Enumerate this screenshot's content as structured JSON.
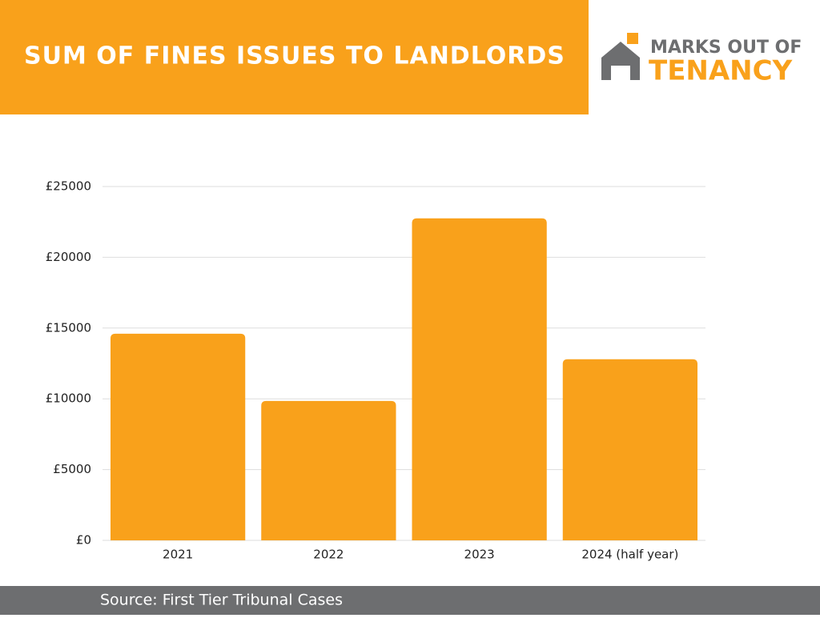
{
  "chart_data": {
    "type": "bar",
    "title": "SUM OF FINES ISSUES TO LANDLORDS",
    "categories": [
      "2021",
      "2022",
      "2023",
      "2024 (half year)"
    ],
    "values": [
      14600,
      9850,
      22750,
      12800
    ],
    "color": "#f9a11b",
    "ylim": [
      0,
      25000
    ],
    "yticks": [
      {
        "value": 0,
        "label": "£0"
      },
      {
        "value": 5000,
        "label": "£5000"
      },
      {
        "value": 10000,
        "label": "£10000"
      },
      {
        "value": 15000,
        "label": "£15000"
      },
      {
        "value": 20000,
        "label": "£20000"
      },
      {
        "value": 25000,
        "label": "£25000"
      }
    ],
    "grid": true
  },
  "logo": {
    "line1": "MARKS OUT OF",
    "line2": "TENANCY"
  },
  "source": "Source: First Tier Tribunal Cases"
}
